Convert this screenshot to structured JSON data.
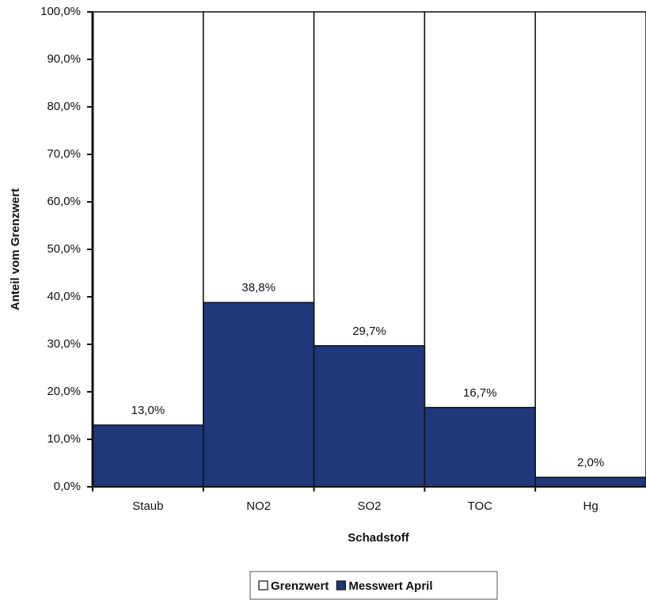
{
  "chart_data": {
    "type": "bar",
    "stacked": false,
    "x_label": "Schadstoff",
    "y_label": "Anteil vom Grenzwert",
    "categories": [
      "Staub",
      "NO2",
      "SO2",
      "TOC",
      "Hg"
    ],
    "series": [
      {
        "name": "Grenzwert",
        "color": "#ffffff",
        "values": [
          100,
          100,
          100,
          100,
          100
        ]
      },
      {
        "name": "Messwert April",
        "color": "#1e3879",
        "values": [
          13.0,
          38.8,
          29.7,
          16.7,
          2.0
        ],
        "value_labels": [
          "13,0%",
          "38,8%",
          "29,7%",
          "16,7%",
          "2,0%"
        ]
      }
    ],
    "ylim": [
      0,
      100
    ],
    "yticks": [
      {
        "value": 0,
        "label": "0,0%"
      },
      {
        "value": 10,
        "label": "10,0%"
      },
      {
        "value": 20,
        "label": "20,0%"
      },
      {
        "value": 30,
        "label": "30,0%"
      },
      {
        "value": 40,
        "label": "40,0%"
      },
      {
        "value": 50,
        "label": "50,0%"
      },
      {
        "value": 60,
        "label": "60,0%"
      },
      {
        "value": 70,
        "label": "70,0%"
      },
      {
        "value": 80,
        "label": "80,0%"
      },
      {
        "value": 90,
        "label": "90,0%"
      },
      {
        "value": 100,
        "label": "100,0%"
      }
    ],
    "legend": "bottom"
  }
}
